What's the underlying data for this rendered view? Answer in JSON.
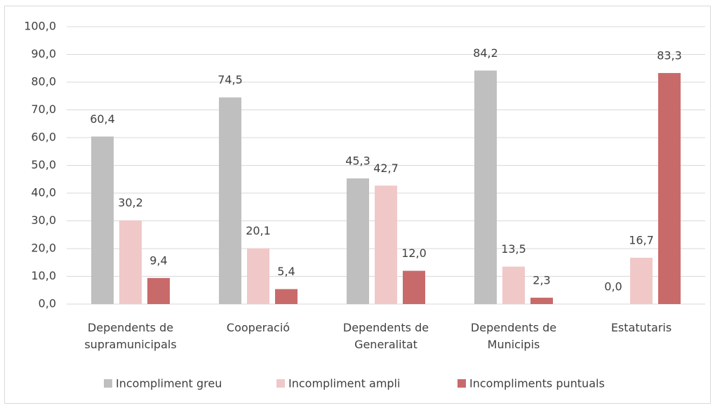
{
  "chart_data": {
    "type": "bar",
    "categories": [
      "Dependents de supramunicipals",
      "Cooperació",
      "Dependents de Generalitat",
      "Dependents de Municipis",
      "Estatutaris"
    ],
    "series": [
      {
        "name": "Incompliment greu",
        "color": "#bfbfbf",
        "values": [
          60.4,
          74.5,
          45.3,
          84.2,
          0.0
        ],
        "value_labels": [
          "60,4",
          "74,5",
          "45,3",
          "84,2",
          "0,0"
        ]
      },
      {
        "name": "Incompliment ampli",
        "color": "#f0c8c8",
        "values": [
          30.2,
          20.1,
          42.7,
          13.5,
          16.7
        ],
        "value_labels": [
          "30,2",
          "20,1",
          "42,7",
          "13,5",
          "16,7"
        ]
      },
      {
        "name": "Incompliments puntuals",
        "color": "#c96a6a",
        "values": [
          9.4,
          5.4,
          12.0,
          2.3,
          83.3
        ],
        "value_labels": [
          "9,4",
          "5,4",
          "12,0",
          "2,3",
          "83,3"
        ]
      }
    ],
    "ylim": [
      0,
      100
    ],
    "yticks": [
      {
        "value": 0,
        "label": "0,0"
      },
      {
        "value": 10,
        "label": "10,0"
      },
      {
        "value": 20,
        "label": "20,0"
      },
      {
        "value": 30,
        "label": "30,0"
      },
      {
        "value": 40,
        "label": "40,0"
      },
      {
        "value": 50,
        "label": "50,0"
      },
      {
        "value": 60,
        "label": "60,0"
      },
      {
        "value": 70,
        "label": "70,0"
      },
      {
        "value": 80,
        "label": "80,0"
      },
      {
        "value": 90,
        "label": "90,0"
      },
      {
        "value": 100,
        "label": "100,0"
      }
    ],
    "grid": true,
    "legend": "bottom"
  }
}
